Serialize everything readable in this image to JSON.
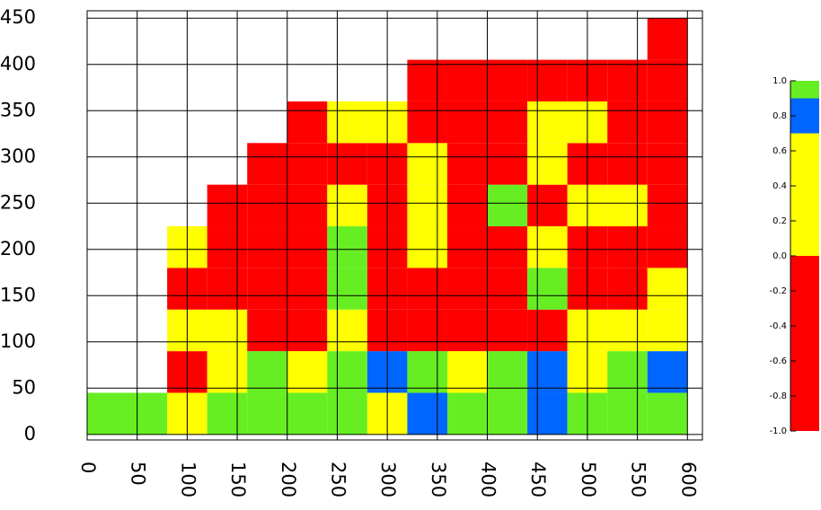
{
  "chart_data": {
    "type": "contourf",
    "x": [
      0,
      40,
      80,
      120,
      160,
      200,
      240,
      280,
      320,
      360,
      400,
      440,
      480,
      520,
      560,
      600
    ],
    "y": [
      0,
      45,
      90,
      135,
      180,
      225,
      270,
      315,
      360,
      405,
      450
    ],
    "z": [
      [
        0.95,
        0.95,
        0.35,
        0.95,
        0.95,
        0.95,
        0.95,
        0.35,
        0.8,
        0.95,
        0.95,
        0.8,
        0.95,
        0.95,
        0.95
      ],
      [
        null,
        null,
        -0.5,
        0.35,
        0.95,
        0.35,
        0.95,
        0.8,
        0.95,
        0.35,
        0.95,
        0.8,
        0.35,
        0.95,
        0.8
      ],
      [
        null,
        null,
        0.35,
        0.35,
        -0.5,
        -0.5,
        0.35,
        -0.5,
        -0.5,
        -0.5,
        -0.5,
        -0.5,
        0.35,
        0.35,
        0.35
      ],
      [
        null,
        null,
        -0.5,
        -0.5,
        -0.5,
        -0.5,
        0.95,
        -0.5,
        -0.5,
        -0.5,
        -0.5,
        0.95,
        -0.5,
        -0.5,
        0.35
      ],
      [
        null,
        null,
        0.35,
        -0.5,
        -0.5,
        -0.5,
        0.95,
        -0.5,
        0.35,
        -0.5,
        -0.5,
        0.35,
        -0.5,
        -0.5,
        -0.5
      ],
      [
        null,
        null,
        null,
        -0.5,
        -0.5,
        -0.5,
        0.35,
        -0.5,
        0.35,
        -0.5,
        0.95,
        -0.5,
        0.35,
        0.35,
        -0.5
      ],
      [
        null,
        null,
        null,
        null,
        -0.5,
        -0.5,
        -0.5,
        -0.5,
        0.35,
        -0.5,
        -0.5,
        0.35,
        -0.5,
        -0.5,
        -0.5
      ],
      [
        null,
        null,
        null,
        null,
        null,
        -0.5,
        0.35,
        0.35,
        -0.5,
        -0.5,
        -0.5,
        0.35,
        0.35,
        -0.5,
        -0.5
      ],
      [
        null,
        null,
        null,
        null,
        null,
        null,
        null,
        null,
        -0.5,
        -0.5,
        -0.5,
        -0.5,
        -0.5,
        -0.5,
        -0.5
      ],
      [
        null,
        null,
        null,
        null,
        null,
        null,
        null,
        null,
        null,
        null,
        null,
        null,
        null,
        null,
        -0.5
      ]
    ],
    "levels": [
      -1,
      0,
      0.7,
      0.9,
      1
    ],
    "colors": [
      "#ff0000",
      "#ffff00",
      "#0066ff",
      "#66ee22"
    ],
    "xlim": [
      0,
      615
    ],
    "ylim": [
      -6,
      458
    ],
    "xticks": [
      0,
      50,
      100,
      150,
      200,
      250,
      300,
      350,
      400,
      450,
      500,
      550,
      600
    ],
    "yticks": [
      0,
      50,
      100,
      150,
      200,
      250,
      300,
      350,
      400,
      450
    ],
    "grid": true,
    "clim": [
      -1,
      1
    ],
    "cticks": [
      {
        "value": 1,
        "label": "1.0"
      },
      {
        "value": 0.8,
        "label": "0.8"
      },
      {
        "value": 0.6,
        "label": "0.6"
      },
      {
        "value": 0.4,
        "label": "0.4"
      },
      {
        "value": 0.2,
        "label": "0.2"
      },
      {
        "value": 0,
        "label": "0.0"
      },
      {
        "value": -0.2,
        "label": "-0.2"
      },
      {
        "value": -0.4,
        "label": "-0.4"
      },
      {
        "value": -0.6,
        "label": "-0.6"
      },
      {
        "value": -0.8,
        "label": "-0.8"
      },
      {
        "value": -1,
        "label": "-1.0"
      }
    ]
  }
}
